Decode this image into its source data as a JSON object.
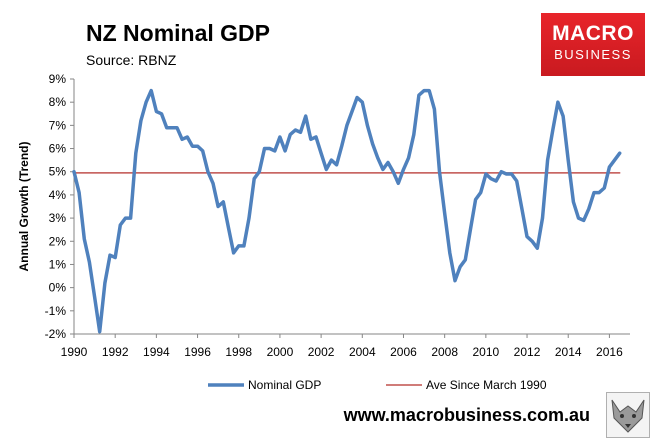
{
  "title": "NZ Nominal GDP",
  "subtitle": "Source: RBNZ",
  "logo": {
    "line1": "MACRO",
    "line2": "BUSINESS",
    "color": "#e8242a"
  },
  "footer": {
    "url": "www.macrobusiness.com.au",
    "badge_icon": "fox-head-icon"
  },
  "chart_data": {
    "type": "line",
    "title": "NZ Nominal GDP",
    "xlabel": "",
    "ylabel": "Annual Growth (Trend)",
    "xlim": [
      1990,
      2017
    ],
    "ylim": [
      -2,
      9
    ],
    "x_ticks": [
      "1990",
      "1992",
      "1994",
      "1996",
      "1998",
      "2000",
      "2002",
      "2004",
      "2006",
      "2008",
      "2010",
      "2012",
      "2014",
      "2016"
    ],
    "y_ticks": [
      "-2%",
      "-1%",
      "0%",
      "1%",
      "2%",
      "3%",
      "4%",
      "5%",
      "6%",
      "7%",
      "8%",
      "9%"
    ],
    "grid": false,
    "legend_position": "bottom",
    "series": [
      {
        "name": "Nominal GDP",
        "color": "#4f81bd",
        "x": [
          1990.0,
          1990.25,
          1990.5,
          1990.75,
          1991.0,
          1991.25,
          1991.5,
          1991.75,
          1992.0,
          1992.25,
          1992.5,
          1992.75,
          1993.0,
          1993.25,
          1993.5,
          1993.75,
          1994.0,
          1994.25,
          1994.5,
          1994.75,
          1995.0,
          1995.25,
          1995.5,
          1995.75,
          1996.0,
          1996.25,
          1996.5,
          1996.75,
          1997.0,
          1997.25,
          1997.5,
          1997.75,
          1998.0,
          1998.25,
          1998.5,
          1998.75,
          1999.0,
          1999.25,
          1999.5,
          1999.75,
          2000.0,
          2000.25,
          2000.5,
          2000.75,
          2001.0,
          2001.25,
          2001.5,
          2001.75,
          2002.0,
          2002.25,
          2002.5,
          2002.75,
          2003.0,
          2003.25,
          2003.5,
          2003.75,
          2004.0,
          2004.25,
          2004.5,
          2004.75,
          2005.0,
          2005.25,
          2005.5,
          2005.75,
          2006.0,
          2006.25,
          2006.5,
          2006.75,
          2007.0,
          2007.25,
          2007.5,
          2007.75,
          2008.0,
          2008.25,
          2008.5,
          2008.75,
          2009.0,
          2009.25,
          2009.5,
          2009.75,
          2010.0,
          2010.25,
          2010.5,
          2010.75,
          2011.0,
          2011.25,
          2011.5,
          2011.75,
          2012.0,
          2012.25,
          2012.5,
          2012.75,
          2013.0,
          2013.25,
          2013.5,
          2013.75,
          2014.0,
          2014.25,
          2014.5,
          2014.75,
          2015.0,
          2015.25,
          2015.5,
          2015.75,
          2016.0,
          2016.25,
          2016.5
        ],
        "values": [
          5.0,
          4.1,
          2.1,
          1.1,
          -0.4,
          -1.9,
          0.2,
          1.4,
          1.3,
          2.7,
          3.0,
          3.0,
          5.8,
          7.2,
          8.0,
          8.5,
          7.6,
          7.5,
          6.9,
          6.9,
          6.9,
          6.4,
          6.5,
          6.1,
          6.1,
          5.9,
          5.0,
          4.5,
          3.5,
          3.7,
          2.6,
          1.5,
          1.8,
          1.8,
          3.0,
          4.7,
          5.0,
          6.0,
          6.0,
          5.9,
          6.5,
          5.9,
          6.6,
          6.8,
          6.7,
          7.4,
          6.4,
          6.5,
          5.8,
          5.1,
          5.5,
          5.3,
          6.1,
          7.0,
          7.6,
          8.2,
          8.0,
          7.0,
          6.2,
          5.6,
          5.1,
          5.4,
          5.0,
          4.5,
          5.1,
          5.6,
          6.6,
          8.3,
          8.5,
          8.5,
          7.7,
          5.0,
          3.2,
          1.5,
          0.3,
          0.9,
          1.2,
          2.5,
          3.8,
          4.1,
          4.9,
          4.7,
          4.6,
          5.0,
          4.9,
          4.9,
          4.6,
          3.4,
          2.2,
          2.0,
          1.7,
          3.0,
          5.5,
          6.8,
          8.0,
          7.4,
          5.5,
          3.7,
          3.0,
          2.9,
          3.4,
          4.1,
          4.1,
          4.3,
          5.2,
          5.5,
          5.8
        ]
      },
      {
        "name": "Ave Since March 1990",
        "color": "#c0504d",
        "x": [
          1990.0,
          2016.5
        ],
        "values": [
          4.95,
          4.95
        ]
      }
    ]
  }
}
